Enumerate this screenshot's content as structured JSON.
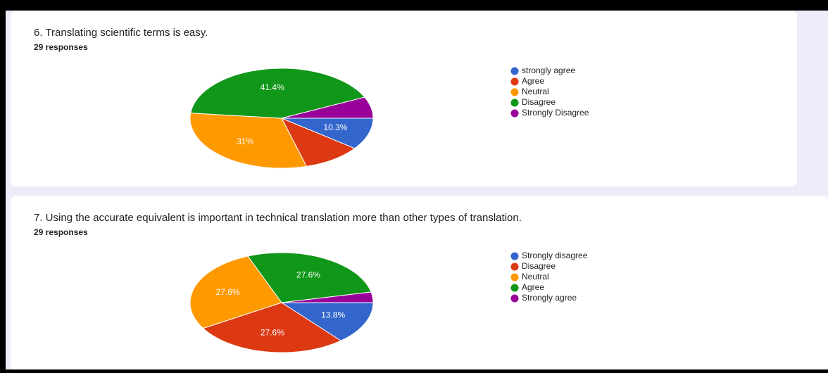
{
  "chart_data": [
    {
      "type": "pie",
      "title": "6. Translating scientific terms is easy.",
      "subtitle": "29 responses",
      "categories": [
        "strongly agree",
        "Agree",
        "Neutral",
        "Disagree",
        "Strongly Disagree"
      ],
      "values": [
        10.3,
        10.3,
        31,
        41.4,
        6.9
      ],
      "value_labels": [
        "10.3%",
        null,
        "31%",
        "41.4%",
        null
      ],
      "colors": [
        "#3366cc",
        "#dc3912",
        "#ff9900",
        "#109618",
        "#990099"
      ]
    },
    {
      "type": "pie",
      "title": "7. Using the accurate equivalent is important in technical translation more than other types of translation.",
      "subtitle": "29 responses",
      "categories": [
        "Strongly disagree",
        "Disagree",
        "Neutral",
        "Agree",
        "Strongly agree"
      ],
      "values": [
        13.8,
        27.6,
        27.6,
        27.6,
        3.4
      ],
      "value_labels": [
        "13.8%",
        "27.6%",
        "27.6%",
        "27.6%",
        null
      ],
      "colors": [
        "#3366cc",
        "#dc3912",
        "#ff9900",
        "#109618",
        "#990099"
      ]
    }
  ]
}
